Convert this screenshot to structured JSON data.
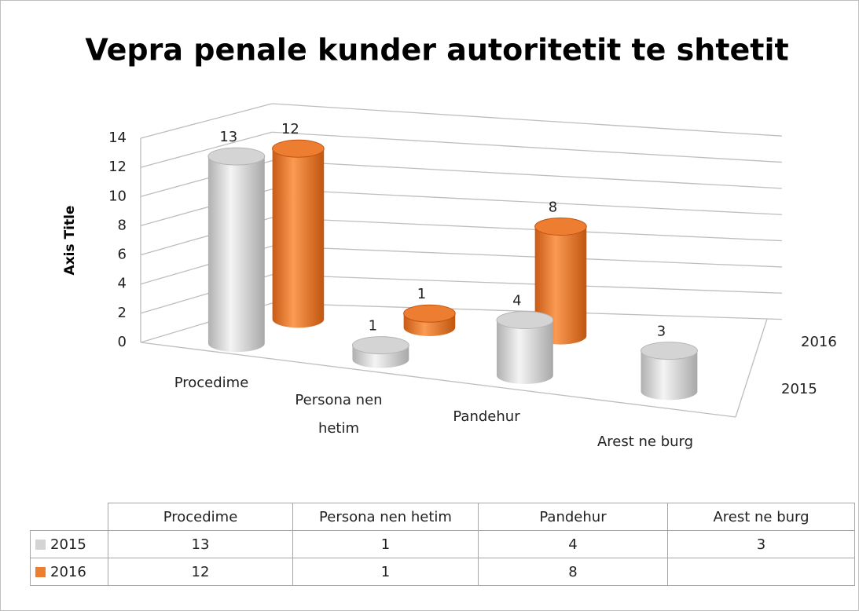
{
  "chart_data": {
    "type": "bar3d",
    "title": "Vepra penale kunder autoritetit te shtetit",
    "y_axis_label": "Axis Title",
    "categories": [
      "Procedime",
      "Persona nen hetim",
      "Pandehur",
      "Arest ne burg"
    ],
    "series": [
      {
        "name": "2015",
        "color": "#d4d4d4",
        "values": [
          13,
          1,
          4,
          3
        ]
      },
      {
        "name": "2016",
        "color": "#ed7d31",
        "values": [
          12,
          1,
          8,
          null
        ]
      }
    ],
    "ylim": [
      0,
      14
    ],
    "yticks": [
      0,
      2,
      4,
      6,
      8,
      10,
      12,
      14
    ],
    "grid": true,
    "data_table": true
  }
}
